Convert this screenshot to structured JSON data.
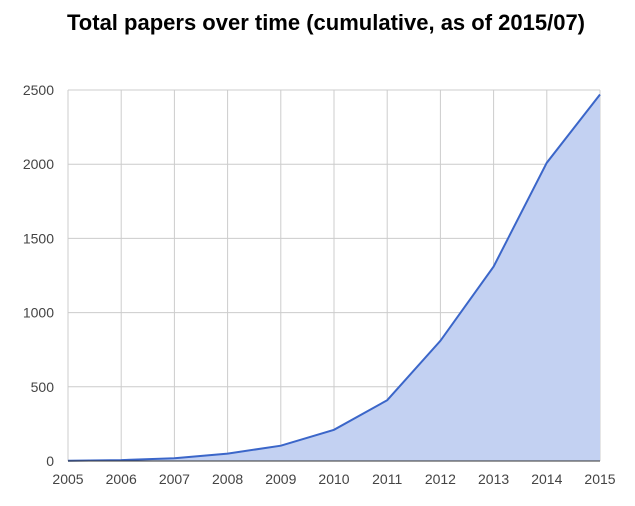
{
  "chart_data": {
    "type": "area",
    "title": "Total papers over time (cumulative, as of 2015/07)",
    "xlabel": "",
    "ylabel": "",
    "x": [
      "2005",
      "2006",
      "2007",
      "2008",
      "2009",
      "2010",
      "2011",
      "2012",
      "2013",
      "2014",
      "2015"
    ],
    "series": [
      {
        "values": [
          2,
          6,
          18,
          50,
          103,
          210,
          410,
          810,
          1310,
          2010,
          2470
        ]
      }
    ],
    "xlim": [
      2005,
      2015
    ],
    "ylim": [
      0,
      2500
    ],
    "yticks": [
      "0",
      "500",
      "1000",
      "1500",
      "2000",
      "2500"
    ],
    "grid": true,
    "legend": "none",
    "colors": {
      "line": "#3b66c9",
      "fill": "#c3d1f2",
      "grid": "#cccccc",
      "axis": "#333333"
    }
  }
}
